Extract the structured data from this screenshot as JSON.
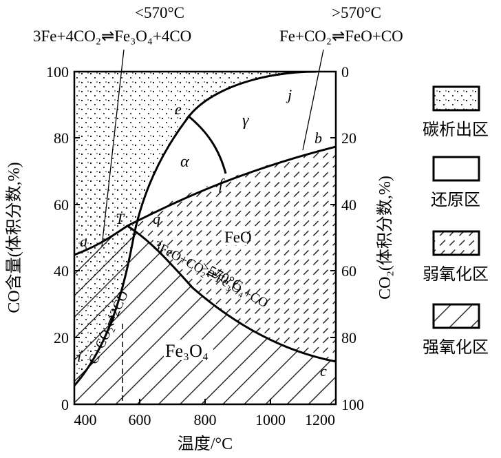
{
  "annotations": {
    "below570": "<570°C",
    "below570_reaction": "3Fe+4CO₂⇌Fe₃O₄+4CO",
    "above570": ">570°C",
    "above570_reaction": "Fe+CO₂⇌FeO+CO",
    "feo_fe3o4_temp": ">570°C",
    "feo_fe3o4_reaction": "3FeO+CO₂⇌Fe₃O₄+CO",
    "boudouard_reaction": "C+CO₂⇌2CO"
  },
  "axes": {
    "x_label": "温度/°C",
    "y_left_label": "CO含量(体积分数,%)",
    "y_right_label": "CO₂(体积分数,%)",
    "x_ticks": [
      "400",
      "600",
      "800",
      "1000",
      "1200"
    ],
    "y_left_ticks": [
      "0",
      "20",
      "40",
      "60",
      "80",
      "100"
    ],
    "y_right_ticks": [
      "100",
      "80",
      "60",
      "40",
      "20",
      "0"
    ]
  },
  "regions": {
    "alpha": "α",
    "gamma": "γ",
    "feo": "FeO",
    "fe3o4": "Fe₃O₄"
  },
  "points": {
    "a": "a",
    "b": "b",
    "c": "c",
    "e": "e",
    "f": "f",
    "i": "i",
    "j": "j",
    "q": "q",
    "T": "T"
  },
  "legend": [
    {
      "key": "carbon",
      "label": "碳析出区",
      "pattern": "dots"
    },
    {
      "key": "reduction",
      "label": "还原区",
      "pattern": "none"
    },
    {
      "key": "weak_oxidation",
      "label": "弱氧化区",
      "pattern": "dashes"
    },
    {
      "key": "strong_oxidation",
      "label": "强氧化区",
      "pattern": "hatch"
    }
  ]
}
